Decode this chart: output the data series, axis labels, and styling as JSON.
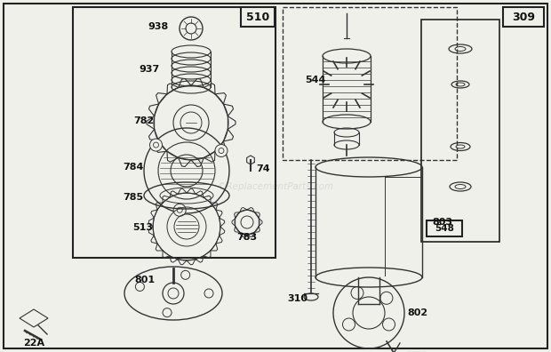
{
  "bg_color": "#f0f0eb",
  "border_color": "#222222",
  "line_color": "#333333",
  "watermark": "©ReplacementParts.com",
  "watermark_color": "#cccccc",
  "figsize": [
    6.2,
    3.96
  ],
  "dpi": 100
}
